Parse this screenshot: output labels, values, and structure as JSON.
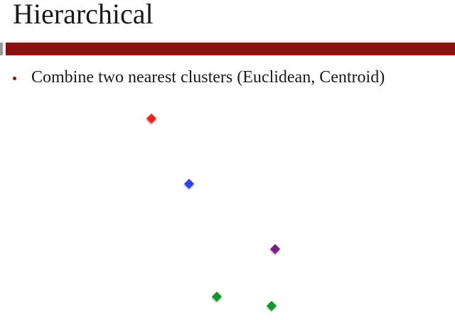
{
  "slide": {
    "title": "Hierarchical",
    "bullet": "Combine two nearest clusters (Euclidean, Centroid)"
  },
  "colors": {
    "accent_bar": "#8b1010",
    "title_text": "#1a1a1a"
  },
  "points": [
    {
      "name": "red-point",
      "color": "#ff1a1a"
    },
    {
      "name": "blue-point",
      "color": "#2f3fff"
    },
    {
      "name": "purple-point",
      "color": "#7a1a8a"
    },
    {
      "name": "green-point-1",
      "color": "#0f9a2a"
    },
    {
      "name": "green-point-2",
      "color": "#0f9a2a"
    }
  ]
}
